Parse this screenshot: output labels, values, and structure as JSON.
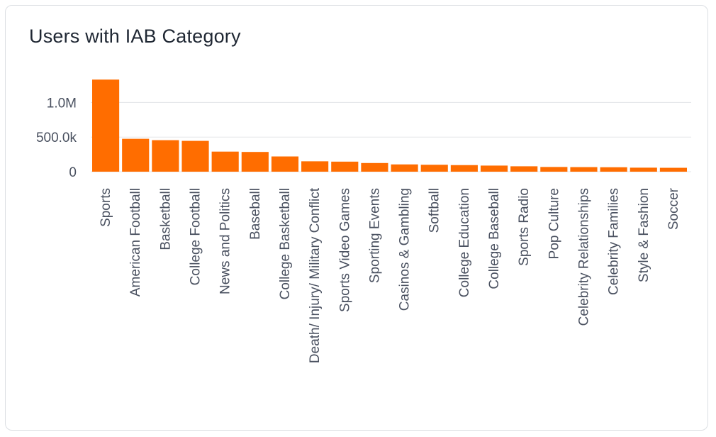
{
  "chart_data": {
    "type": "bar",
    "title": "Users with IAB Category",
    "xlabel": "",
    "ylabel": "",
    "categories": [
      "Sports",
      "American Football",
      "Basketball",
      "College Football",
      "News and Politics",
      "Baseball",
      "College Basketball",
      "Death/ Injury/ Military Conflict",
      "Sports Video Games",
      "Sporting Events",
      "Casinos & Gambling",
      "Softball",
      "College Education",
      "College Baseball",
      "Sports Radio",
      "Pop Culture",
      "Celebrity Relationships",
      "Celebrity Families",
      "Style & Fashion",
      "Soccer"
    ],
    "values": [
      1330000,
      475000,
      455000,
      445000,
      290000,
      285000,
      220000,
      150000,
      145000,
      125000,
      105000,
      100000,
      95000,
      88000,
      78000,
      68000,
      66000,
      64000,
      58000,
      56000
    ],
    "y_ticks": [
      {
        "value": 0,
        "label": "0"
      },
      {
        "value": 500000,
        "label": "500.0k"
      },
      {
        "value": 1000000,
        "label": "1.0M"
      }
    ],
    "ylim": [
      0,
      1350000
    ],
    "grid": true,
    "legend": "none",
    "bar_color": "#ff6d00",
    "grid_color": "#e3e5e8"
  }
}
